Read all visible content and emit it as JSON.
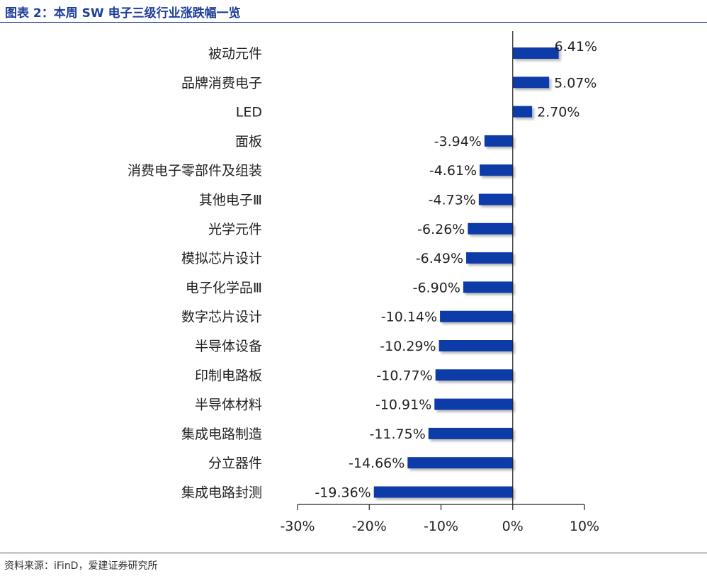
{
  "title": "图表 2：本周 SW 电子三级行业涨跌幅一览",
  "source": "资料来源：iFinD，爱建证券研究所",
  "colors": {
    "bar": "#0a3aa8",
    "title": "#1e3f9a"
  },
  "chart_data": {
    "type": "bar",
    "orientation": "horizontal",
    "categories": [
      "被动元件",
      "品牌消费电子",
      "LED",
      "面板",
      "消费电子零部件及组装",
      "其他电子Ⅲ",
      "光学元件",
      "模拟芯片设计",
      "电子化学品Ⅲ",
      "数字芯片设计",
      "半导体设备",
      "印制电路板",
      "半导体材料",
      "集成电路制造",
      "分立器件",
      "集成电路封测"
    ],
    "values": [
      6.41,
      5.07,
      2.7,
      -3.94,
      -4.61,
      -4.73,
      -6.26,
      -6.49,
      -6.9,
      -10.14,
      -10.29,
      -10.77,
      -10.91,
      -11.75,
      -14.66,
      -19.36
    ],
    "value_labels": [
      "6.41%",
      "5.07%",
      "2.70%",
      "-3.94%",
      "-4.61%",
      "-4.73%",
      "-6.26%",
      "-6.49%",
      "-6.90%",
      "-10.14%",
      "-10.29%",
      "-10.77%",
      "-10.91%",
      "-11.75%",
      "-14.66%",
      "-19.36%"
    ],
    "x_ticks": [
      -30,
      -20,
      -10,
      0,
      10
    ],
    "x_tick_labels": [
      "-30%",
      "-20%",
      "-10%",
      "0%",
      "10%"
    ],
    "xlim": [
      -30,
      10
    ],
    "unit": "%",
    "grid": false,
    "legend": "none"
  }
}
